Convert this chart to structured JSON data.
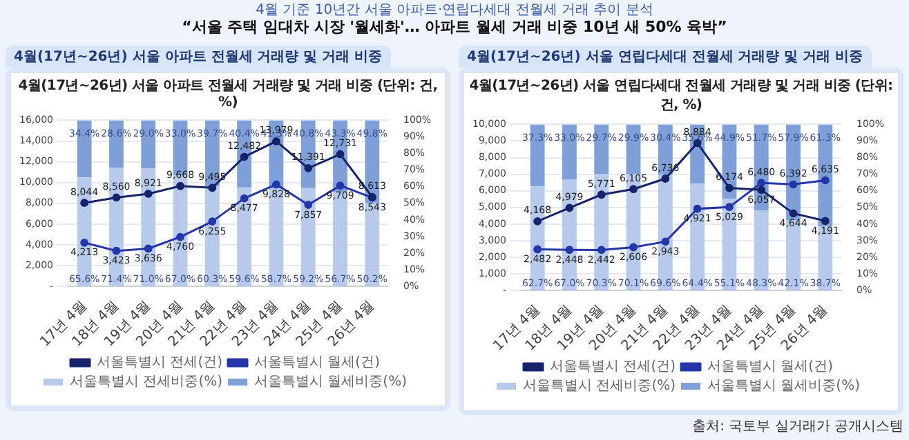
{
  "chart_data": [
    {
      "type": "bar",
      "title": "4월(17년~26년) 서울 아파트 전월세 거래량 및 거래 비중 (단위: 건, %)",
      "subtitle": "4월(17년~26년) 서울 아파트 전월세 거래량 및 거래 비중",
      "annotations": [
        "4월 기준 10년간 서울 아파트·연립다세대 전월세 거래 추이 분석",
        "“서울 주택 임대차 시장 '월세화'… 아파트 월세 거래 비중 10년 새 50% 육박”"
      ],
      "categories": [
        "17년 4월",
        "18년 4월",
        "19년 4월",
        "20년 4월",
        "21년 4월",
        "22년 4월",
        "23년 4월",
        "24년 4월",
        "25년 4월",
        "26년 4월"
      ],
      "stacked": true,
      "grid": "y",
      "legend": "bottom",
      "marker": "circle",
      "ylim": [
        0,
        16000
      ],
      "yticks": [
        {
          "value": 0,
          "label": "-"
        },
        {
          "value": 2000,
          "label": "2,000"
        },
        {
          "value": 4000,
          "label": "4,000"
        },
        {
          "value": 6000,
          "label": "6,000"
        },
        {
          "value": 8000,
          "label": "8,000"
        },
        {
          "value": 10000,
          "label": "10,000"
        },
        {
          "value": 12000,
          "label": "12,000"
        },
        {
          "value": 14000,
          "label": "14,000"
        },
        {
          "value": 16000,
          "label": "16,000"
        }
      ],
      "y2lim": [
        0,
        100
      ],
      "y2ticks": [
        {
          "value": 0,
          "label": "0%"
        },
        {
          "value": 10,
          "label": "10%"
        },
        {
          "value": 20,
          "label": "20%"
        },
        {
          "value": 30,
          "label": "30%"
        },
        {
          "value": 40,
          "label": "40%"
        },
        {
          "value": 50,
          "label": "50%"
        },
        {
          "value": 60,
          "label": "60%"
        },
        {
          "value": 70,
          "label": "70%"
        },
        {
          "value": 80,
          "label": "80%"
        },
        {
          "value": 90,
          "label": "90%"
        },
        {
          "value": 100,
          "label": "100%"
        }
      ],
      "series": [
        {
          "name": "서울특별시 전세비중(%)",
          "axis": "y2",
          "color": "#b7caeb",
          "values": [
            65.6,
            71.4,
            71.0,
            67.0,
            60.3,
            59.6,
            58.7,
            59.2,
            56.7,
            50.2
          ],
          "value_labels": [
            "65.6%",
            "71.4%",
            "71.0%",
            "67.0%",
            "60.3%",
            "59.6%",
            "58.7%",
            "59.2%",
            "56.7%",
            "50.2%"
          ]
        },
        {
          "name": "서울특별시 월세비중(%)",
          "axis": "y2",
          "color": "#7f9fd8",
          "values": [
            34.4,
            28.6,
            29.0,
            33.0,
            39.7,
            40.4,
            41.3,
            40.8,
            43.3,
            49.8
          ],
          "value_labels": [
            "34.4%",
            "28.6%",
            "29.0%",
            "33.0%",
            "39.7%",
            "40.4%",
            "41.3%",
            "40.8%",
            "43.3%",
            "49.8%"
          ]
        },
        {
          "name": "서울특별시 전세(건)",
          "type": "line",
          "color": "#16226a",
          "values": [
            8044,
            8560,
            8921,
            9668,
            9495,
            12482,
            13979,
            11391,
            12731,
            8613
          ],
          "value_labels": [
            "8,044",
            "8,560",
            "8,921",
            "9,668",
            "9,495",
            "12,482",
            "13,979",
            "11,391",
            "12,731",
            "8,613"
          ]
        },
        {
          "name": "서울특별시 월세(건)",
          "type": "line",
          "color": "#2436a8",
          "values": [
            4213,
            3423,
            3636,
            4760,
            6255,
            8477,
            9828,
            7857,
            9709,
            8543
          ],
          "value_labels": [
            "4,213",
            "3,423",
            "3,636",
            "4,760",
            "6,255",
            "8,477",
            "9,828",
            "7,857",
            "9,709",
            "8,543"
          ]
        }
      ]
    },
    {
      "type": "bar",
      "title": "4월(17년~26년) 서울 연립다세대 전월세 거래량 및 거래 비중 (단위: 건, %)",
      "subtitle": "4월(17년~26년) 서울 연립다세대 전월세 거래량 및 거래 비중",
      "annotations": [
        "출처: 국토부 실거래가 공개시스템"
      ],
      "categories": [
        "17년 4월",
        "18년 4월",
        "19년 4월",
        "20년 4월",
        "21년 4월",
        "22년 4월",
        "23년 4월",
        "24년 4월",
        "25년 4월",
        "26년 4월"
      ],
      "stacked": true,
      "grid": "y",
      "legend": "bottom",
      "marker": "circle",
      "ylim": [
        0,
        10000
      ],
      "yticks": [
        {
          "value": 0,
          "label": "-"
        },
        {
          "value": 1000,
          "label": "1,000"
        },
        {
          "value": 2000,
          "label": "2,000"
        },
        {
          "value": 3000,
          "label": "3,000"
        },
        {
          "value": 4000,
          "label": "4,000"
        },
        {
          "value": 5000,
          "label": "5,000"
        },
        {
          "value": 6000,
          "label": "6,000"
        },
        {
          "value": 7000,
          "label": "7,000"
        },
        {
          "value": 8000,
          "label": "8,000"
        },
        {
          "value": 9000,
          "label": "9,000"
        },
        {
          "value": 10000,
          "label": "10,000"
        }
      ],
      "y2lim": [
        0,
        100
      ],
      "y2ticks": [
        {
          "value": 0,
          "label": "0%"
        },
        {
          "value": 10,
          "label": "10%"
        },
        {
          "value": 20,
          "label": "20%"
        },
        {
          "value": 30,
          "label": "30%"
        },
        {
          "value": 40,
          "label": "40%"
        },
        {
          "value": 50,
          "label": "50%"
        },
        {
          "value": 60,
          "label": "60%"
        },
        {
          "value": 70,
          "label": "70%"
        },
        {
          "value": 80,
          "label": "80%"
        },
        {
          "value": 90,
          "label": "90%"
        },
        {
          "value": 100,
          "label": "100%"
        }
      ],
      "series": [
        {
          "name": "서울특별시 전세비중(%)",
          "axis": "y2",
          "color": "#b7caeb",
          "values": [
            62.7,
            67.0,
            70.3,
            70.1,
            69.6,
            64.4,
            55.1,
            48.3,
            42.1,
            38.7
          ],
          "value_labels": [
            "62.7%",
            "67.0%",
            "70.3%",
            "70.1%",
            "69.6%",
            "64.4%",
            "55.1%",
            "48.3%",
            "42.1%",
            "38.7%"
          ]
        },
        {
          "name": "서울특별시 월세비중(%)",
          "axis": "y2",
          "color": "#7f9fd8",
          "values": [
            37.3,
            33.0,
            29.7,
            29.9,
            30.4,
            35.6,
            44.9,
            51.7,
            57.9,
            61.3
          ],
          "value_labels": [
            "37.3%",
            "33.0%",
            "29.7%",
            "29.9%",
            "30.4%",
            "35.6%",
            "44.9%",
            "51.7%",
            "57.9%",
            "61.3%"
          ]
        },
        {
          "name": "서울특별시 전세(건)",
          "type": "line",
          "color": "#16226a",
          "values": [
            4168,
            4979,
            5771,
            6105,
            6736,
            8884,
            6174,
            6057,
            4644,
            4191
          ],
          "value_labels": [
            "4,168",
            "4,979",
            "5,771",
            "6,105",
            "6,736",
            "8,884",
            "6,174",
            "6,057",
            "4,644",
            "4,191"
          ]
        },
        {
          "name": "서울특별시 월세(건)",
          "type": "line",
          "color": "#2436a8",
          "values": [
            2482,
            2448,
            2442,
            2606,
            2943,
            4921,
            5029,
            6480,
            6392,
            6635
          ],
          "value_labels": [
            "2,482",
            "2,448",
            "2,442",
            "2,606",
            "2,943",
            "4,921",
            "5,029",
            "6,480",
            "6,392",
            "6,635"
          ]
        }
      ]
    }
  ]
}
